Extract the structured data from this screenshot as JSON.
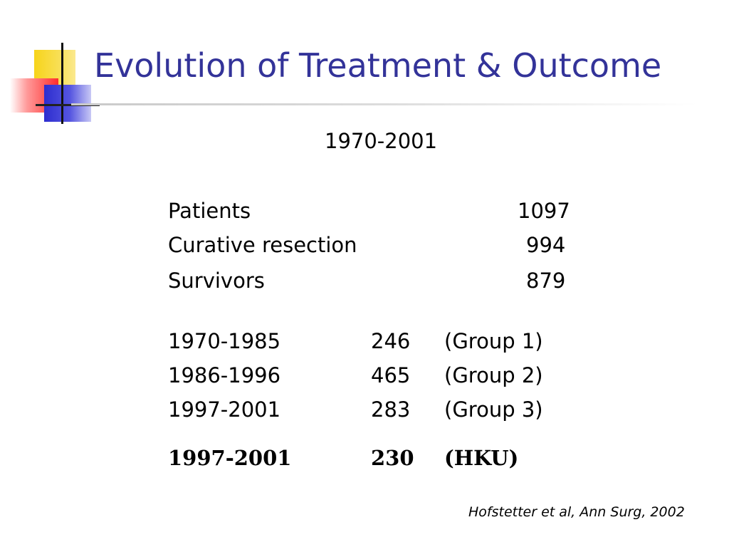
{
  "title": "Evolution of Treatment & Outcome",
  "subtitle": "1970-2001",
  "totals": [
    {
      "label": "Patients",
      "value": "1097"
    },
    {
      "label": "Curative resection",
      "value": "994"
    },
    {
      "label": "Survivors",
      "value": "879"
    }
  ],
  "groups": [
    {
      "period": "1970-1985",
      "count": "246",
      "group": "(Group 1)"
    },
    {
      "period": "1986-1996",
      "count": "465",
      "group": "(Group 2)"
    },
    {
      "period": "1997-2001",
      "count": "283",
      "group": "(Group 3)"
    }
  ],
  "hku": {
    "period": "1997-2001",
    "count": "230",
    "group": "(HKU)"
  },
  "citation": "Hofstetter et al, Ann Surg, 2002",
  "colors": {
    "title": "#333399",
    "logo_yellow": "#f7d41a",
    "logo_red": "#ff2d2d",
    "logo_blue": "#2d2dcf"
  }
}
